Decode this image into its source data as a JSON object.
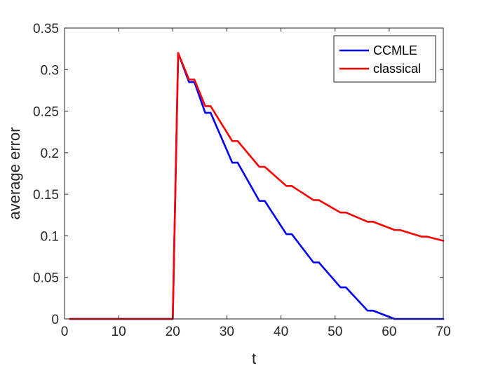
{
  "chart_data": {
    "type": "line",
    "title": "",
    "xlabel": "t",
    "ylabel": "average error",
    "xlim": [
      0,
      70
    ],
    "ylim": [
      0,
      0.35
    ],
    "xticks": [
      0,
      10,
      20,
      30,
      40,
      50,
      60,
      70
    ],
    "yticks": [
      0,
      0.05,
      0.1,
      0.15,
      0.2,
      0.25,
      0.3,
      0.35
    ],
    "xtick_labels": [
      "0",
      "10",
      "20",
      "30",
      "40",
      "50",
      "60",
      "70"
    ],
    "ytick_labels": [
      "0",
      "0.05",
      "0.1",
      "0.15",
      "0.2",
      "0.25",
      "0.3",
      "0.35"
    ],
    "grid": false,
    "legend_position": "top-right",
    "series": [
      {
        "name": "CCMLE",
        "color": "#0000ff",
        "x": [
          1,
          20,
          21,
          23,
          24,
          26,
          27,
          31,
          32,
          36,
          37,
          41,
          42,
          46,
          47,
          51,
          52,
          56,
          57,
          61,
          70
        ],
        "y": [
          0,
          0,
          0.32,
          0.285,
          0.285,
          0.248,
          0.248,
          0.188,
          0.188,
          0.142,
          0.142,
          0.102,
          0.102,
          0.068,
          0.068,
          0.038,
          0.038,
          0.01,
          0.01,
          0,
          0
        ]
      },
      {
        "name": "classical",
        "color": "#ff0000",
        "x": [
          1,
          20,
          21,
          23,
          24,
          26,
          27,
          31,
          32,
          36,
          37,
          41,
          42,
          46,
          47,
          51,
          52,
          56,
          57,
          61,
          62,
          66,
          67,
          70
        ],
        "y": [
          0,
          0,
          0.32,
          0.288,
          0.288,
          0.256,
          0.256,
          0.214,
          0.214,
          0.183,
          0.183,
          0.16,
          0.16,
          0.143,
          0.143,
          0.128,
          0.128,
          0.117,
          0.117,
          0.107,
          0.107,
          0.099,
          0.099,
          0.094
        ]
      }
    ]
  }
}
